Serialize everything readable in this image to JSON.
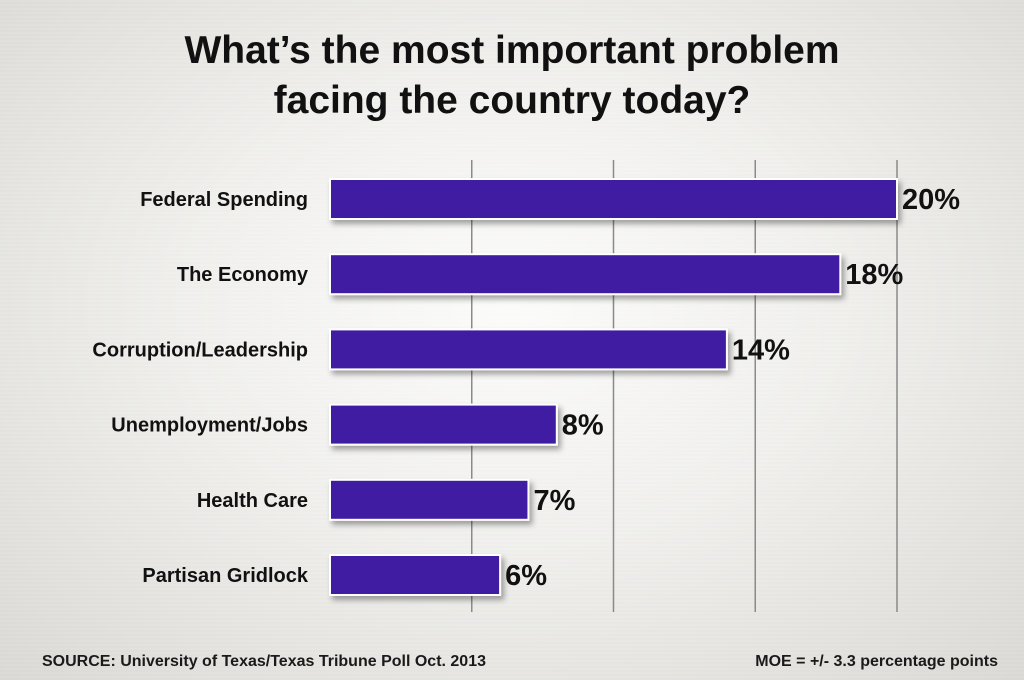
{
  "chart_data": {
    "type": "bar",
    "orientation": "horizontal",
    "title": "What’s the most important problem facing the country today?",
    "title_lines": [
      "What’s the most important problem",
      "facing the country today?"
    ],
    "categories": [
      "Federal Spending",
      "The Economy",
      "Corruption/Leadership",
      "Unemployment/Jobs",
      "Health Care",
      "Partisan Gridlock"
    ],
    "values": [
      20,
      18,
      14,
      8,
      7,
      6
    ],
    "value_labels": [
      "20%",
      "18%",
      "14%",
      "8%",
      "7%",
      "6%"
    ],
    "xlim": [
      0,
      20
    ],
    "gridlines": [
      5,
      10,
      15,
      20
    ],
    "grid": true,
    "xlabel": "",
    "ylabel": "",
    "bar_color": "#3f1fa3",
    "bar_outline_color": "#ffffff"
  },
  "footer": {
    "source": "SOURCE: University of Texas/Texas Tribune Poll Oct. 2013",
    "moe": "MOE = +/- 3.3 percentage points"
  }
}
